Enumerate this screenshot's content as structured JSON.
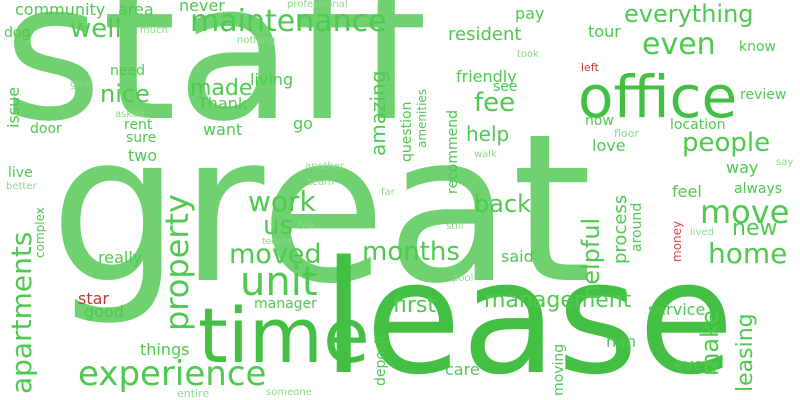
{
  "words": [
    "staff",
    "great",
    "lease",
    "time",
    "office",
    "unit",
    "maintenance",
    "experience",
    "move",
    "moved",
    "property",
    "apartments",
    "months",
    "management",
    "leasing",
    "helpful",
    "home",
    "even",
    "well",
    "people",
    "work",
    "back",
    "first",
    "us",
    "nice",
    "made",
    "help",
    "new",
    "everything",
    "make",
    "amazing",
    "fee",
    "living",
    "community",
    "area",
    "never",
    "professional",
    "pay",
    "resident",
    "tour",
    "dog",
    "much",
    "nothing",
    "know",
    "issue",
    "need",
    "give",
    "left",
    "review",
    "see",
    "friendly",
    "Thank",
    "go",
    "rent",
    "sure",
    "two",
    "door",
    "want",
    "recommend",
    "question",
    "amenities",
    "took",
    "asked",
    "now",
    "location",
    "floor",
    "love",
    "way",
    "say",
    "live",
    "better",
    "another",
    "team",
    "far",
    "always",
    "feel",
    "process",
    "around",
    "walk",
    "still",
    "complex",
    "tenant",
    "tell",
    "money",
    "lived",
    "really",
    "said",
    "star",
    "manager",
    "good",
    "things",
    "deposit",
    "service",
    "nan",
    "pool",
    "care",
    "every",
    "moving",
    "entire",
    "someone"
  ],
  "colors": {
    "primary": "#4fc94f",
    "secondary": "#5ecf5e",
    "accent": "#c2373b"
  }
}
